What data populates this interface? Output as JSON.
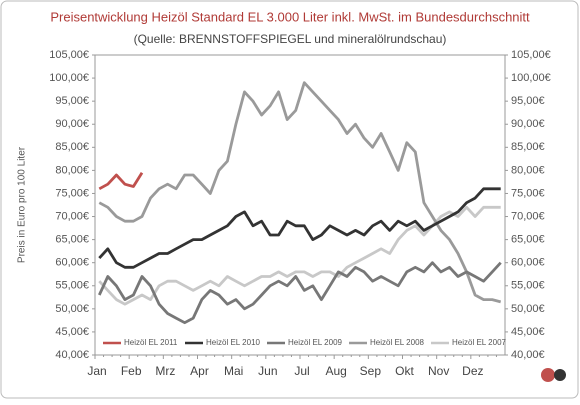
{
  "chart_data": {
    "type": "line",
    "title": "Preisentwicklung Heizöl Standard EL 3.000 Liter inkl. MwSt. im Bundesdurchschnitt",
    "subtitle": "(Quelle: BRENNSTOFFSPIEGEL und mineralölrundschau)",
    "y_label": "Preis in Euro pro 100 Liter",
    "categories": [
      "Jan",
      null,
      null,
      null,
      "Feb",
      null,
      null,
      null,
      "Mrz",
      null,
      null,
      null,
      "Apr",
      null,
      null,
      null,
      "Mai",
      null,
      null,
      null,
      "Jun",
      null,
      null,
      null,
      "Jul",
      null,
      null,
      null,
      "Aug",
      null,
      null,
      null,
      "Sep",
      null,
      null,
      null,
      "Okt",
      null,
      null,
      null,
      "Nov",
      null,
      null,
      null,
      "Dez",
      null,
      null,
      null
    ],
    "ylim": [
      40,
      105
    ],
    "yticks": [
      {
        "value": 40,
        "label": "40,00€"
      },
      {
        "value": 45,
        "label": "45,00€"
      },
      {
        "value": 50,
        "label": "50,00€"
      },
      {
        "value": 55,
        "label": "55,00€"
      },
      {
        "value": 60,
        "label": "60,00€"
      },
      {
        "value": 65,
        "label": "65,00€"
      },
      {
        "value": 70,
        "label": "70,00€"
      },
      {
        "value": 75,
        "label": "75,00€"
      },
      {
        "value": 80,
        "label": "80,00€"
      },
      {
        "value": 85,
        "label": "85,00€"
      },
      {
        "value": 90,
        "label": "90,00€"
      },
      {
        "value": 95,
        "label": "95,00€"
      },
      {
        "value": 100,
        "label": "100,00€"
      },
      {
        "value": 105,
        "label": "105,00€"
      }
    ],
    "y2lim": [
      40,
      105
    ],
    "y2ticks": [
      {
        "value": 40,
        "label": "40,00€"
      },
      {
        "value": 45,
        "label": "45,00€"
      },
      {
        "value": 50,
        "label": "50,00€"
      },
      {
        "value": 55,
        "label": "55,00€"
      },
      {
        "value": 60,
        "label": "60,00€"
      },
      {
        "value": 65,
        "label": "65,00€"
      },
      {
        "value": 70,
        "label": "70,00€"
      },
      {
        "value": 75,
        "label": "75,00€"
      },
      {
        "value": 80,
        "label": "80,00€"
      },
      {
        "value": 85,
        "label": "85,00€"
      },
      {
        "value": 90,
        "label": "90,00€"
      },
      {
        "value": 95,
        "label": "95,00€"
      },
      {
        "value": 100,
        "label": "100,00€"
      },
      {
        "value": 105,
        "label": "105,00€"
      }
    ],
    "grid": false,
    "legend": "bottom",
    "series": [
      {
        "name": "Heizöl EL 2011",
        "color": "#c0504d",
        "values": [
          76,
          77,
          79,
          77,
          76.5,
          79.5,
          null,
          null,
          null,
          null,
          null,
          null,
          null,
          null,
          null,
          null,
          null,
          null,
          null,
          null,
          null,
          null,
          null,
          null,
          null,
          null,
          null,
          null,
          null,
          null,
          null,
          null,
          null,
          null,
          null,
          null,
          null,
          null,
          null,
          null,
          null,
          null,
          null,
          null,
          null,
          null,
          null,
          null
        ]
      },
      {
        "name": "Heizöl EL 2010",
        "color": "#333333",
        "values": [
          61,
          63,
          60,
          59,
          59,
          60,
          61,
          62,
          62,
          63,
          64,
          65,
          65,
          66,
          67,
          68,
          70,
          71,
          68,
          69,
          66,
          66,
          69,
          68,
          68,
          65,
          66,
          68,
          67,
          66,
          67,
          66,
          68,
          69,
          67,
          69,
          68,
          69,
          67,
          68,
          69,
          70,
          71,
          73,
          74,
          76,
          76,
          76
        ]
      },
      {
        "name": "Heizöl EL 2009",
        "color": "#777777",
        "values": [
          53,
          57,
          55,
          52,
          53,
          57,
          55,
          51,
          49,
          48,
          47,
          48,
          52,
          54,
          53,
          51,
          52,
          50,
          51,
          53,
          55,
          56,
          55,
          57,
          54,
          55,
          52,
          55,
          58,
          57,
          59,
          58,
          56,
          57,
          56,
          55,
          58,
          59,
          58,
          60,
          58,
          59,
          57,
          58,
          57,
          56,
          58,
          60
        ]
      },
      {
        "name": "Heizöl EL 2008",
        "color": "#9a9a9a",
        "values": [
          73,
          72,
          70,
          69,
          69,
          70,
          74,
          76,
          77,
          76,
          79,
          79,
          77,
          75,
          80,
          82,
          90,
          97,
          95,
          92,
          94,
          97,
          91,
          93,
          99,
          97,
          95,
          93,
          91,
          88,
          90,
          87,
          85,
          88,
          84,
          80,
          86,
          84,
          73,
          70,
          67,
          65,
          62,
          58,
          53,
          52,
          52,
          51.5
        ]
      },
      {
        "name": "Heizöl EL 2007",
        "color": "#c8c8c8",
        "values": [
          56,
          54,
          52,
          51,
          52,
          53,
          52,
          55,
          56,
          56,
          55,
          54,
          55,
          56,
          55,
          57,
          56,
          55,
          56,
          57,
          57,
          58,
          57,
          58,
          58,
          57,
          58,
          58,
          57,
          59,
          60,
          61,
          62,
          63,
          62,
          65,
          67,
          68,
          66,
          68,
          70,
          71,
          70,
          72,
          70,
          72,
          72,
          72
        ]
      }
    ]
  }
}
